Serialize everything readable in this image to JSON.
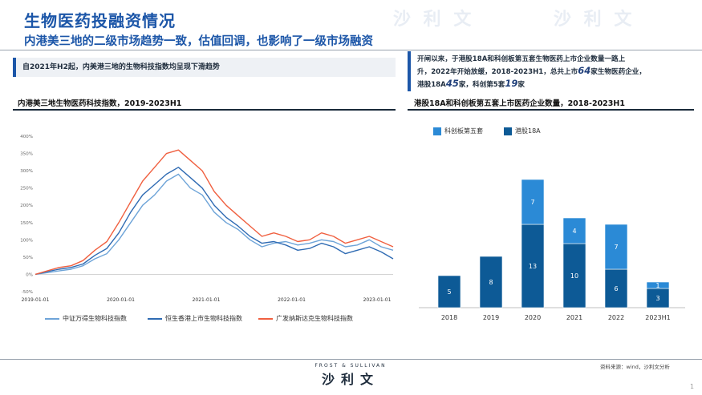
{
  "page": {
    "title": "生物医药投融资情况",
    "subtitle": "内港美三地的二级市场趋势一致，估值回调，也影响了一级市场融资",
    "left_note": "自2021年H2起，内美港三地的生物科技指数均呈现下滑趋势",
    "right_note": {
      "line1": "开闸以来，于港股18A和科创板第五套生物医药上市企业数量一路上",
      "line2": "升，2022年开始放缓，2018-2023H1，总共上市",
      "n64": "64",
      "line2b": "家生物医药企业，",
      "line3a": "港股18A",
      "n45": "45",
      "line3b": "家，科创第5套",
      "n19": "19",
      "line3c": "家"
    },
    "deco_logo": "沙 利 文",
    "footer": {
      "brand_en": "FROST & SULLIVAN",
      "brand_cn": "沙利文",
      "source": "资料来源：wind，沙利文分析",
      "page_number": "1"
    },
    "colors": {
      "accent": "#1c56a8",
      "series_csi": "#6ea4d8",
      "series_hs": "#2f6bb3",
      "series_nbi": "#f06040",
      "bar_star": "#2b8ad6",
      "bar_hk": "#0d5a96"
    }
  },
  "chart_data": [
    {
      "type": "line",
      "title": "内港美三地生物医药科技指数，2019-2023H1",
      "y_ticks": [
        "400%",
        "350%",
        "300%",
        "250%",
        "200%",
        "150%",
        "100%",
        "50%",
        "0%",
        "-50%"
      ],
      "ylim": [
        -50,
        400
      ],
      "x_ticks": [
        "2019-01-01",
        "2020-01-01",
        "2021-01-01",
        "2022-01-01",
        "2023-01-01"
      ],
      "grid": false,
      "legend_position": "bottom",
      "series": [
        {
          "name": "中证万得生物科技指数",
          "color": "#6ea4d8",
          "values": [
            0,
            5,
            10,
            15,
            25,
            45,
            60,
            100,
            150,
            200,
            230,
            270,
            290,
            250,
            230,
            180,
            150,
            130,
            100,
            80,
            90,
            95,
            85,
            90,
            100,
            95,
            80,
            85,
            100,
            80,
            70
          ]
        },
        {
          "name": "恒生香港上市生物科技指数",
          "color": "#2f6bb3",
          "values": [
            0,
            8,
            15,
            20,
            30,
            55,
            75,
            120,
            180,
            230,
            260,
            290,
            310,
            280,
            250,
            200,
            165,
            140,
            110,
            90,
            95,
            85,
            70,
            75,
            90,
            80,
            60,
            70,
            80,
            65,
            45
          ]
        },
        {
          "name": "广发纳斯达克生物科技指数",
          "color": "#f06040",
          "values": [
            0,
            10,
            20,
            25,
            40,
            70,
            95,
            150,
            210,
            270,
            310,
            350,
            360,
            330,
            300,
            240,
            200,
            170,
            140,
            110,
            120,
            110,
            95,
            100,
            120,
            110,
            90,
            100,
            110,
            95,
            80
          ]
        }
      ]
    },
    {
      "type": "bar",
      "title": "港股18A和科创板第五套上市医药企业数量，2018-2023H1",
      "categories": [
        "2018",
        "2019",
        "2020",
        "2021",
        "2022",
        "2023H1"
      ],
      "legend_position": "top-left",
      "series": [
        {
          "name": "港股18A",
          "color": "#0d5a96",
          "values": [
            5,
            8,
            13,
            10,
            6,
            3
          ]
        },
        {
          "name": "科创板第五套",
          "color": "#2b8ad6",
          "values": [
            0,
            0,
            7,
            4,
            7,
            1
          ]
        }
      ]
    }
  ]
}
